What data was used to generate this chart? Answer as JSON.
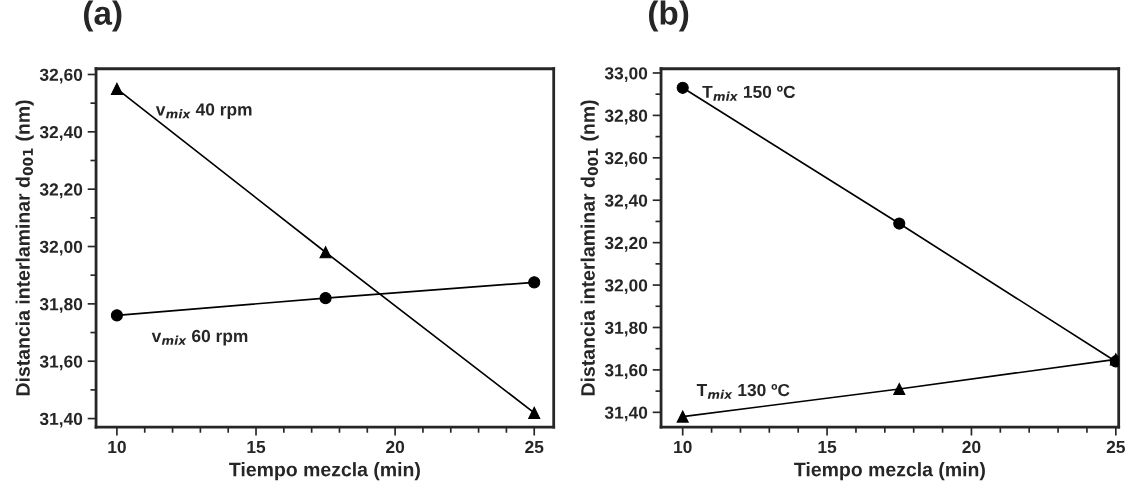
{
  "chart_data": [
    {
      "type": "line",
      "title": "(a)",
      "xlabel": "Tiempo mezcla (min)",
      "ylabel": "Distancia interlaminar d$_{001}$ (nm)",
      "x": [
        10,
        17.5,
        25
      ],
      "xlim": [
        9.25,
        25.7
      ],
      "xticks": [
        10,
        15,
        20,
        25
      ],
      "ylim": [
        31.37,
        32.62
      ],
      "yticks": [
        {
          "value": 31.4,
          "label": "31,40"
        },
        {
          "value": 31.6,
          "label": "31,60"
        },
        {
          "value": 31.8,
          "label": "31,80"
        },
        {
          "value": 32.0,
          "label": "32,00"
        },
        {
          "value": 32.2,
          "label": "32,20"
        },
        {
          "value": 32.4,
          "label": "32,40"
        },
        {
          "value": 32.6,
          "label": "32,60"
        }
      ],
      "grid": false,
      "legend": false,
      "series": [
        {
          "name": "v$_{mix}$ 40 rpm",
          "color": "#000000",
          "marker": "triangle",
          "values": [
            32.55,
            31.98,
            31.42
          ]
        },
        {
          "name": "v$_{mix}$ 60 rpm",
          "color": "#000000",
          "marker": "circle",
          "values": [
            31.76,
            31.82,
            31.875
          ]
        }
      ]
    },
    {
      "type": "line",
      "title": "(b)",
      "xlabel": "Tiempo mezcla (min)",
      "ylabel": "Distancia interlaminar d$_{001}$ (nm)",
      "x": [
        10,
        17.5,
        25
      ],
      "xlim": [
        9.25,
        25.1
      ],
      "xticks": [
        10,
        15,
        20,
        25
      ],
      "ylim": [
        31.33,
        33.02
      ],
      "yticks": [
        {
          "value": 31.4,
          "label": "31,40"
        },
        {
          "value": 31.6,
          "label": "31,60"
        },
        {
          "value": 31.8,
          "label": "31,80"
        },
        {
          "value": 32.0,
          "label": "32,00"
        },
        {
          "value": 32.2,
          "label": "32,20"
        },
        {
          "value": 32.4,
          "label": "32,40"
        },
        {
          "value": 32.6,
          "label": "32,60"
        },
        {
          "value": 32.8,
          "label": "32,80"
        },
        {
          "value": 33.0,
          "label": "33,00"
        }
      ],
      "grid": false,
      "legend": false,
      "series": [
        {
          "name": "T$_{mix}$ 150 ºC",
          "color": "#000000",
          "marker": "circle",
          "values": [
            32.93,
            32.29,
            31.64
          ]
        },
        {
          "name": "T$_{mix}$ 130 ºC",
          "color": "#000000",
          "marker": "triangle",
          "values": [
            31.38,
            31.51,
            31.65
          ]
        }
      ]
    }
  ]
}
